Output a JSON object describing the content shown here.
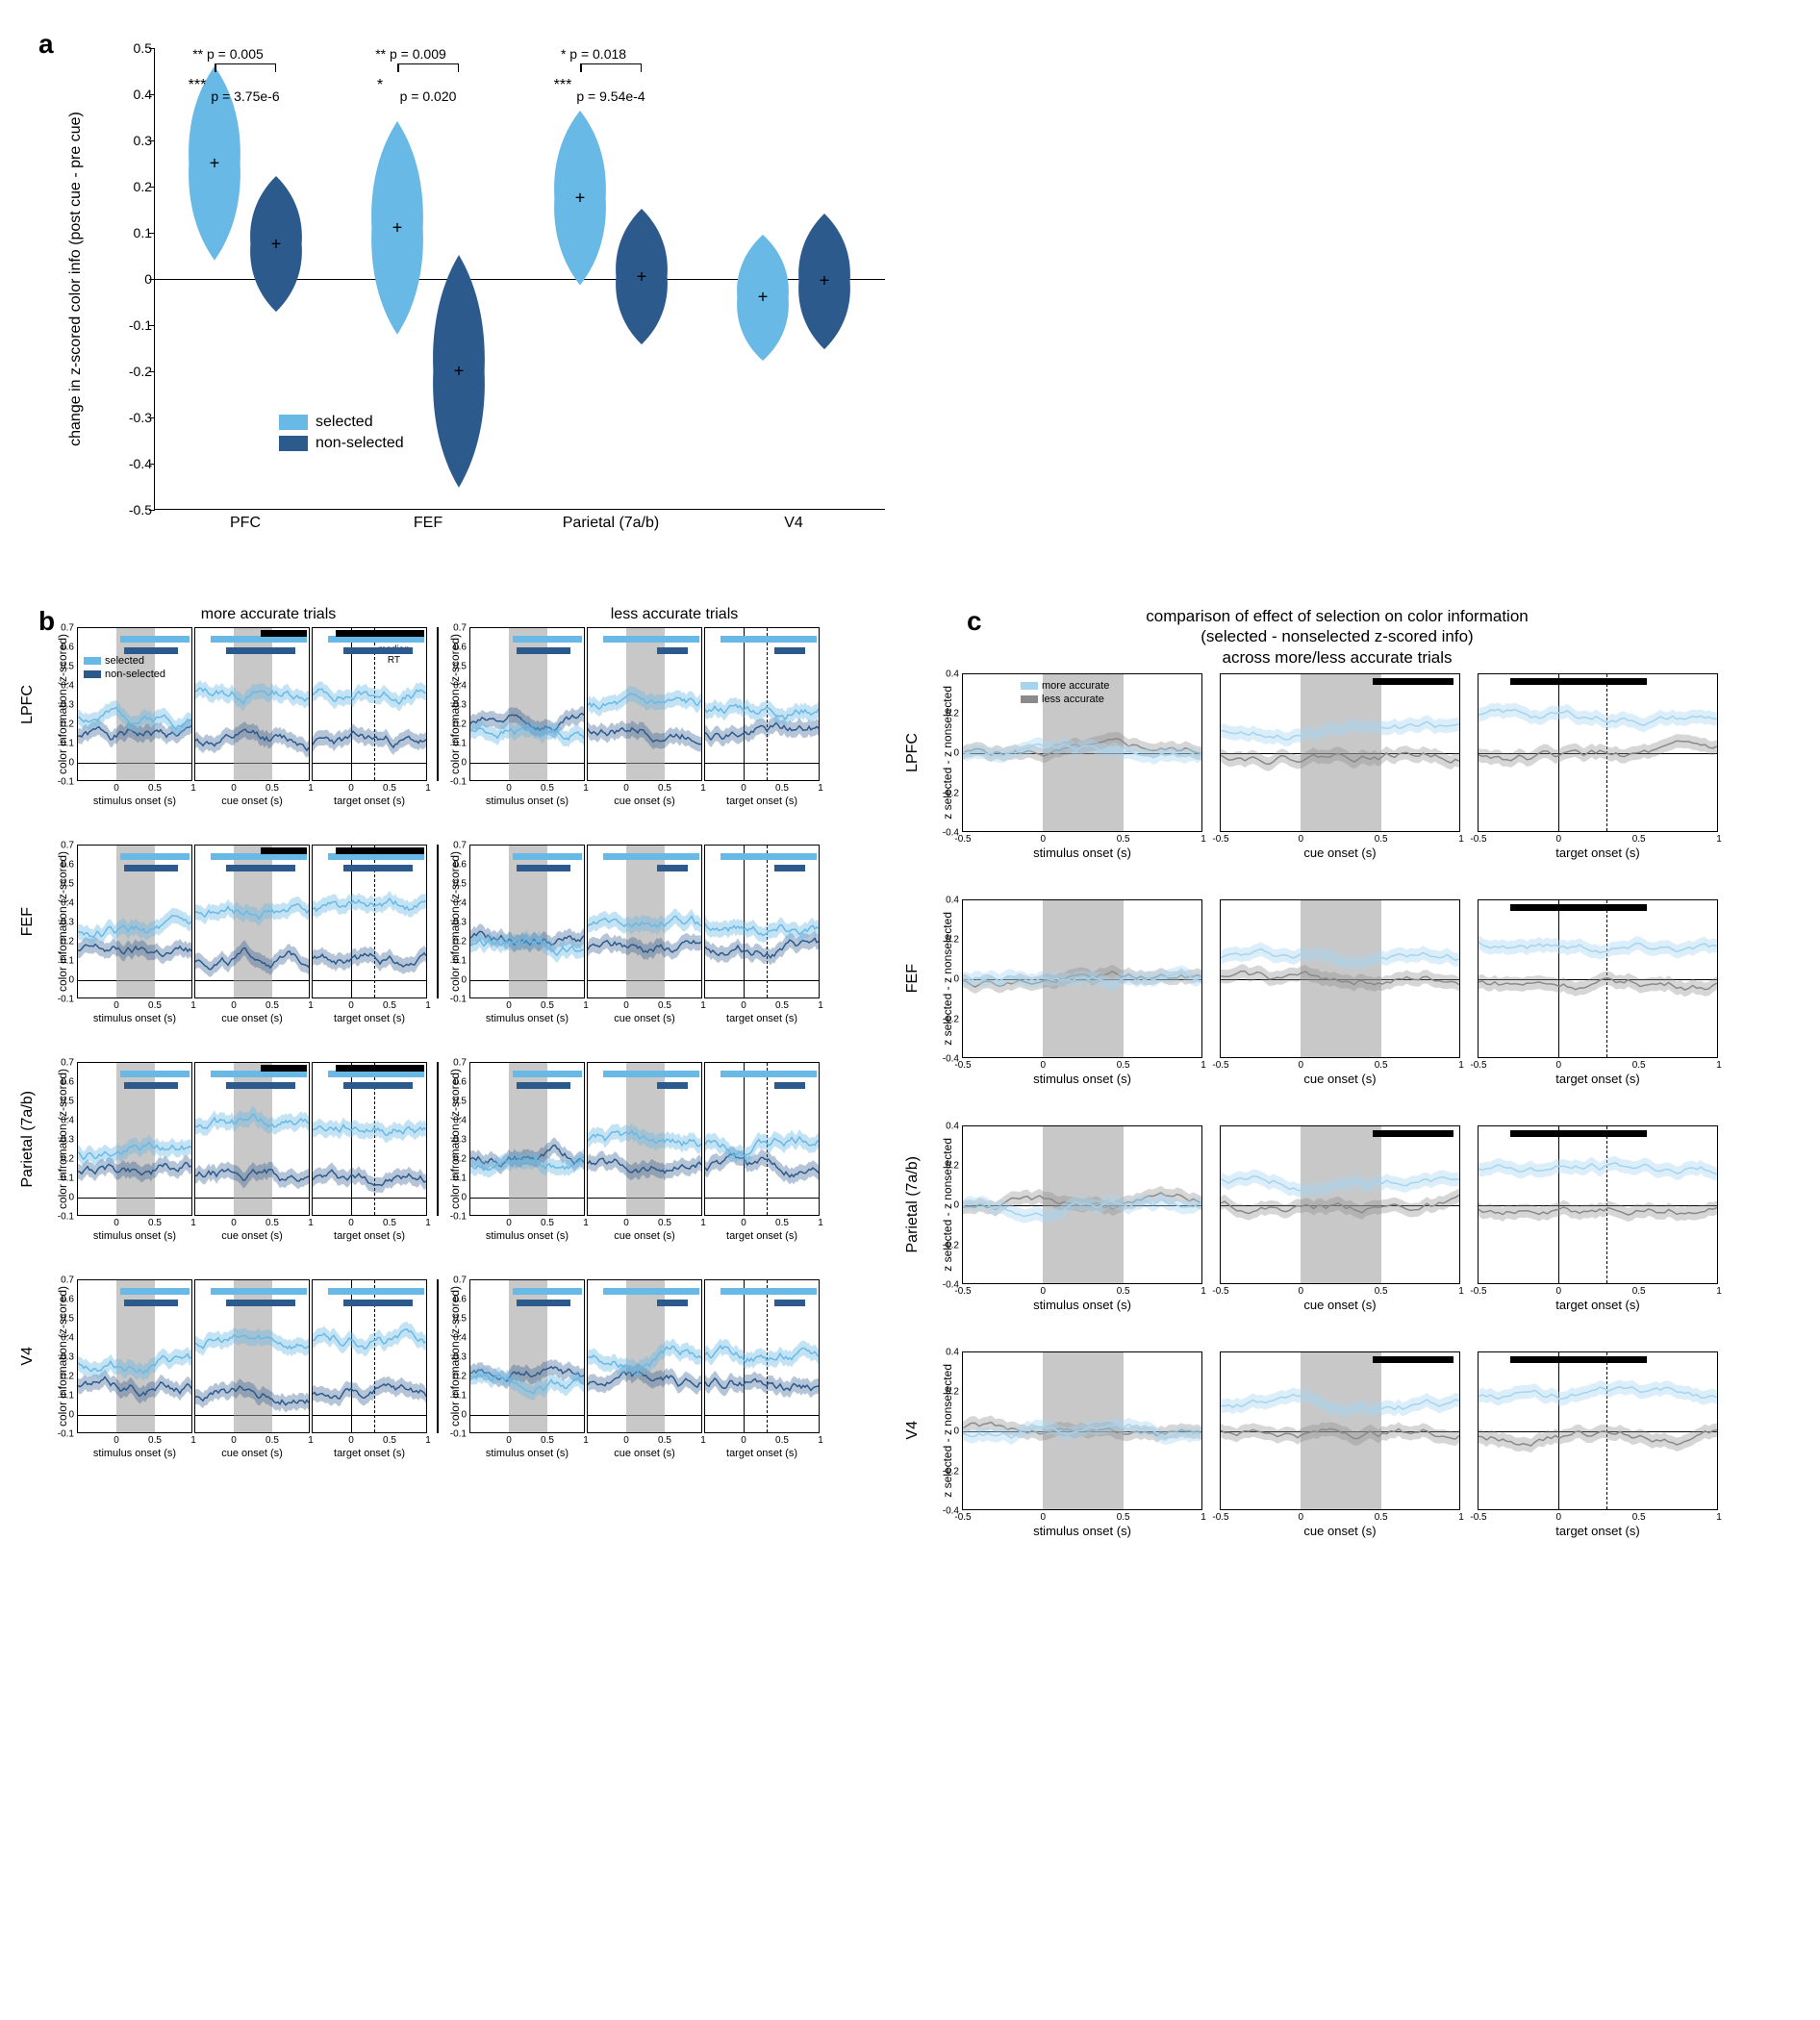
{
  "colors": {
    "selected": "#68b9e6",
    "nonselected": "#2c5a8c",
    "more_accurate": "#a5d4ef",
    "less_accurate": "#8a8a8a",
    "sigbar_black": "#000000",
    "epoch_band": "#9a9a9a"
  },
  "panel_labels": {
    "a": "a",
    "b": "b",
    "c": "c"
  },
  "panel_a": {
    "ylabel": "change in z-scored color info (post cue - pre cue)",
    "ylim": [
      -0.5,
      0.5
    ],
    "yticks": [
      -0.5,
      -0.4,
      -0.3,
      -0.2,
      -0.1,
      0,
      0.1,
      0.2,
      0.3,
      0.4,
      0.5
    ],
    "groups": [
      "PFC",
      "FEF",
      "Parietal (7a/b)",
      "V4"
    ],
    "legend": {
      "selected": "selected",
      "nonselected": "non-selected"
    },
    "violins": [
      {
        "group": "PFC",
        "cond": "selected",
        "mean": 0.25,
        "spread": 0.1,
        "color": "#68b9e6"
      },
      {
        "group": "PFC",
        "cond": "nonselected",
        "mean": 0.075,
        "spread": 0.07,
        "color": "#2c5a8c"
      },
      {
        "group": "FEF",
        "cond": "selected",
        "mean": 0.11,
        "spread": 0.11,
        "color": "#68b9e6"
      },
      {
        "group": "FEF",
        "cond": "nonselected",
        "mean": -0.2,
        "spread": 0.12,
        "color": "#2c5a8c"
      },
      {
        "group": "Parietal",
        "cond": "selected",
        "mean": 0.175,
        "spread": 0.09,
        "color": "#68b9e6"
      },
      {
        "group": "Parietal",
        "cond": "nonselected",
        "mean": 0.005,
        "spread": 0.07,
        "color": "#2c5a8c"
      },
      {
        "group": "V4",
        "cond": "selected",
        "mean": -0.04,
        "spread": 0.065,
        "color": "#68b9e6"
      },
      {
        "group": "V4",
        "cond": "nonselected",
        "mean": -0.005,
        "spread": 0.07,
        "color": "#2c5a8c"
      }
    ],
    "stats": [
      {
        "group": "PFC",
        "stars": "***",
        "within_p": "p = 3.75e-6",
        "between_stars": "**",
        "between_p": "p = 0.005"
      },
      {
        "group": "FEF",
        "stars": "*",
        "within_p": "p = 0.020",
        "between_stars": "**",
        "between_p": "p = 0.009"
      },
      {
        "group": "Parietal",
        "stars": "***",
        "within_p": "p = 9.54e-4",
        "between_stars": "*",
        "between_p": "p = 0.018"
      }
    ]
  },
  "panel_b": {
    "title_left": "more accurate trials",
    "title_right": "less accurate trials",
    "regions": [
      "LPFC",
      "FEF",
      "Parietal (7a/b)",
      "V4"
    ],
    "ylabel": "color information (z-scored)",
    "ylabel_parietal": "color infromation (z-scored)",
    "ylim": [
      -0.1,
      0.7
    ],
    "yticks": [
      -0.1,
      0,
      0.1,
      0.2,
      0.3,
      0.4,
      0.5,
      0.6,
      0.7
    ],
    "xlim": [
      -0.5,
      1.0
    ],
    "xticks": [
      0,
      0.5,
      1
    ],
    "epochs": [
      "stimulus onset (s)",
      "cue onset (s)",
      "target onset (s)"
    ],
    "epoch_band_x": [
      0,
      0.5
    ],
    "median_rt_label": "median\nRT",
    "median_rt_x": 0.3,
    "legend": {
      "selected": "selected",
      "nonselected": "non-selected"
    },
    "selected_color": "#68b9e6",
    "nonselected_color": "#2c5a8c"
  },
  "panel_c": {
    "title": "comparison of effect of selection on color information\n(selected - nonselected z-scored info)\nacross more/less accurate trials",
    "regions": [
      "LPFC",
      "FEF",
      "Parietal (7a/b)",
      "V4"
    ],
    "ylabel": "z selected - z nonselected",
    "ylim": [
      -0.4,
      0.4
    ],
    "yticks": [
      -0.4,
      -0.2,
      0,
      0.2,
      0.4
    ],
    "xlim": [
      -0.5,
      1.0
    ],
    "xticks": [
      -0.5,
      0,
      0.5,
      1
    ],
    "epochs": [
      "stimulus onset (s)",
      "cue onset (s)",
      "target onset (s)"
    ],
    "epoch_band_x": [
      0,
      0.5
    ],
    "median_rt_x": 0.3,
    "legend": {
      "more": "more accurate",
      "less": "less accurate"
    },
    "more_color": "#a5d4ef",
    "less_color": "#8a8a8a"
  }
}
